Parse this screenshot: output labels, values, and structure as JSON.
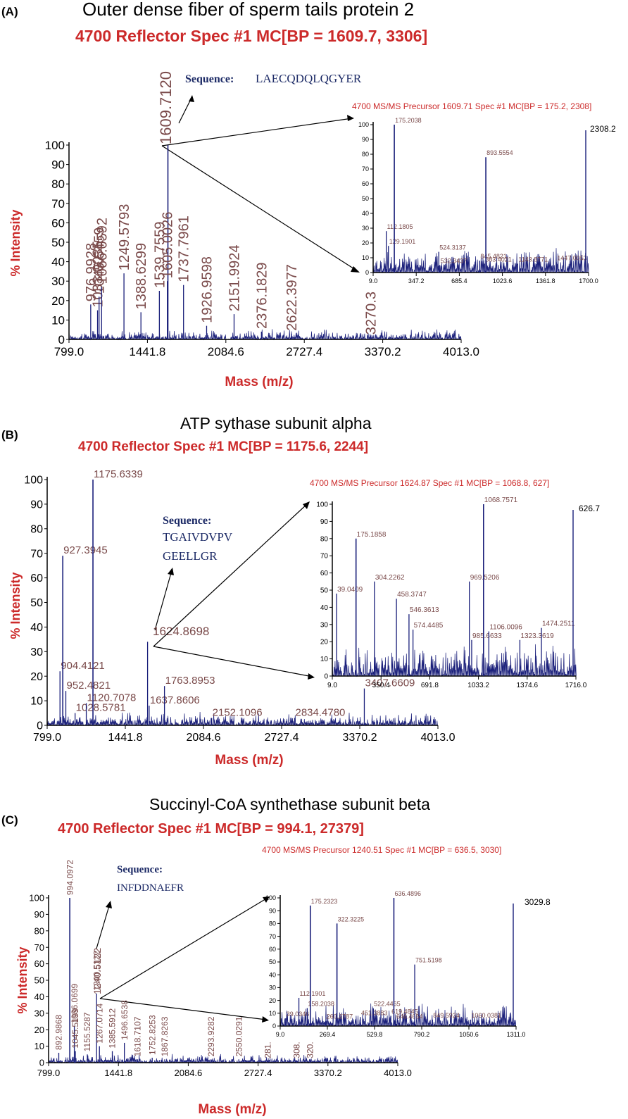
{
  "panels": [
    {
      "letter": "(A)",
      "protein": "Outer dense fiber of sperm tails protein 2",
      "spec_title": "4700 Reflector Spec #1 MC[BP = 1609.7, 3306]",
      "sequence_label": "Sequence:",
      "sequence_lines": [
        "LAECQDQLQGYER"
      ],
      "precursor_peak": "1609.7120"
    },
    {
      "letter": "(B)",
      "protein": "ATP sythase subunit alpha",
      "spec_title": "4700 Reflector Spec #1 MC[BP = 1175.6, 2244]",
      "sequence_label": "Sequence:",
      "sequence_lines": [
        "TGAIVDVPV",
        "GEELLGR"
      ],
      "precursor_peak": "1624.8698"
    },
    {
      "letter": "(C)",
      "protein": "Succinyl-CoA synthethase subunit beta",
      "spec_title": "4700 Reflector Spec #1 MC[BP = 994.1, 27379]",
      "sequence_label": "Sequence:",
      "sequence_lines": [
        "INFDDNAEFR"
      ],
      "precursor_peak": "1240.5122"
    }
  ],
  "chart_data": [
    {
      "type": "bar",
      "panel": "A-main",
      "title": "4700 Reflector Spec #1 MC[BP = 1609.7, 3306]",
      "xlabel": "Mass (m/z)",
      "ylabel": "% Intensity",
      "xlim": [
        799.0,
        4013.0
      ],
      "ylim": [
        0,
        100
      ],
      "xticks": [
        "799.0",
        "1441.8",
        "2084.6",
        "2727.4",
        "3370.2",
        "4013.0"
      ],
      "yticks": [
        "0",
        "10",
        "20",
        "30",
        "40",
        "50",
        "60",
        "70",
        "80",
        "90",
        "100"
      ],
      "peaks": [
        {
          "mz": 976.9928,
          "i": 18,
          "label": "976.9928"
        },
        {
          "mz": 1033.0035,
          "i": 15,
          "label": "1033.0035"
        },
        {
          "mz": 1045.5459,
          "i": 22,
          "label": "1045.5459"
        },
        {
          "mz": 1066.0592,
          "i": 27,
          "label": "1066.0592"
        },
        {
          "mz": 1249.5793,
          "i": 34,
          "label": "1249.5793"
        },
        {
          "mz": 1388.6299,
          "i": 14,
          "label": "1388.6299"
        },
        {
          "mz": 1539.7559,
          "i": 25,
          "label": "1539.7559"
        },
        {
          "mz": 1609.712,
          "i": 100,
          "label": "1609.7120"
        },
        {
          "mz": 1605.0026,
          "i": 30,
          "label": "1605.0026"
        },
        {
          "mz": 1737.7961,
          "i": 28,
          "label": "1737.7961"
        },
        {
          "mz": 1926.9598,
          "i": 7,
          "label": "1926.9598"
        },
        {
          "mz": 2151.9924,
          "i": 13,
          "label": "2151.9924"
        },
        {
          "mz": 2376.1829,
          "i": 4,
          "label": "2376.1829"
        },
        {
          "mz": 2622.3977,
          "i": 3,
          "label": "2622.3977"
        },
        {
          "mz": 3270.3,
          "i": 1,
          "label": "3270.3"
        }
      ]
    },
    {
      "type": "bar",
      "panel": "A-inset",
      "title": "4700 MS/MS Precursor 1609.71 Spec #1 MC[BP = 175.2, 2308]",
      "ylim": [
        0,
        100
      ],
      "xlim": [
        9.0,
        1700.0
      ],
      "xticks": [
        "9.0",
        "347.2",
        "685.4",
        "1023.6",
        "1361.8",
        "1700.0"
      ],
      "yticks": [
        "0",
        "10",
        "20",
        "30",
        "40",
        "50",
        "60",
        "70",
        "80",
        "90",
        "100"
      ],
      "max_label": "2308.2",
      "peaks": [
        {
          "mz": 112.1805,
          "i": 28,
          "label": "112.1805"
        },
        {
          "mz": 129.1901,
          "i": 18,
          "label": "129.1901"
        },
        {
          "mz": 175.2038,
          "i": 100,
          "label": "175.2038"
        },
        {
          "mz": 524.3137,
          "i": 14,
          "label": "524.3137"
        },
        {
          "mz": 532.3437,
          "i": 5,
          "label": "532.3437"
        },
        {
          "mz": 845.4821,
          "i": 8,
          "label": "845.4821"
        },
        {
          "mz": 883.4021,
          "i": 6,
          "label": "883.4021"
        },
        {
          "mz": 893.5554,
          "i": 78,
          "label": "893.5554"
        },
        {
          "mz": 1143.8771,
          "i": 6,
          "label": "1143.8771"
        },
        {
          "mz": 1447.0053,
          "i": 7,
          "label": "1447.0053"
        }
      ]
    },
    {
      "type": "bar",
      "panel": "B-main",
      "title": "4700 Reflector Spec #1 MC[BP = 1175.6, 2244]",
      "xlabel": "Mass (m/z)",
      "ylabel": "% Intensity",
      "xlim": [
        799.0,
        4013.0
      ],
      "ylim": [
        0,
        100
      ],
      "xticks": [
        "799.0",
        "1441.8",
        "2084.6",
        "2727.4",
        "3370.2",
        "4013.0"
      ],
      "yticks": [
        "0",
        "10",
        "20",
        "30",
        "40",
        "50",
        "60",
        "70",
        "80",
        "90",
        "100"
      ],
      "peaks": [
        {
          "mz": 904.4121,
          "i": 22,
          "label": "904.4121"
        },
        {
          "mz": 927.3945,
          "i": 69,
          "label": "927.3945"
        },
        {
          "mz": 952.4821,
          "i": 14,
          "label": "952.4821"
        },
        {
          "mz": 1028.5781,
          "i": 5,
          "label": "1028.5781"
        },
        {
          "mz": 1120.7078,
          "i": 9,
          "label": "1120.7078"
        },
        {
          "mz": 1175.6339,
          "i": 100,
          "label": "1175.6339"
        },
        {
          "mz": 1624.8698,
          "i": 34,
          "label": "1624.8698"
        },
        {
          "mz": 1637.8606,
          "i": 8,
          "label": "1637.8606"
        },
        {
          "mz": 1763.8953,
          "i": 16,
          "label": "1763.8953"
        },
        {
          "mz": 2152.1096,
          "i": 3,
          "label": "2152.1096"
        },
        {
          "mz": 2834.478,
          "i": 3,
          "label": "2834.4780"
        },
        {
          "mz": 3407.6609,
          "i": 15,
          "label": "3407.6609"
        }
      ]
    },
    {
      "type": "bar",
      "panel": "B-inset",
      "title": "4700 MS/MS Precursor 1624.87 Spec #1 MC[BP = 1068.8, 627]",
      "ylim": [
        0,
        100
      ],
      "xlim": [
        9.0,
        1716.0
      ],
      "xticks": [
        "9.0",
        "350.4",
        "691.8",
        "1033.2",
        "1374.6",
        "1716.0"
      ],
      "yticks": [
        "0",
        "10",
        "20",
        "30",
        "40",
        "50",
        "60",
        "70",
        "80",
        "90",
        "100"
      ],
      "max_label": "626.7",
      "peaks": [
        {
          "mz": 39.0409,
          "i": 48,
          "label": "39.0409"
        },
        {
          "mz": 175.1858,
          "i": 80,
          "label": "175.1858"
        },
        {
          "mz": 304.2262,
          "i": 55,
          "label": "304.2262"
        },
        {
          "mz": 458.3747,
          "i": 45,
          "label": "458.3747"
        },
        {
          "mz": 546.3613,
          "i": 36,
          "label": "546.3613"
        },
        {
          "mz": 574.4485,
          "i": 27,
          "label": "574.4485"
        },
        {
          "mz": 969.5206,
          "i": 55,
          "label": "969.5206"
        },
        {
          "mz": 985.6633,
          "i": 21,
          "label": "985.6633"
        },
        {
          "mz": 1068.7571,
          "i": 100,
          "label": "1068.7571"
        },
        {
          "mz": 1106.0096,
          "i": 26,
          "label": "1106.0096"
        },
        {
          "mz": 1323.3619,
          "i": 21,
          "label": "1323.3619"
        },
        {
          "mz": 1474.2511,
          "i": 28,
          "label": "1474.2511"
        }
      ]
    },
    {
      "type": "bar",
      "panel": "C-main",
      "title": "4700 Reflector Spec #1 MC[BP = 994.1, 27379]",
      "xlabel": "Mass (m/z)",
      "ylabel": "% Intensity",
      "xlim": [
        799.0,
        4013.0
      ],
      "ylim": [
        0,
        100
      ],
      "xticks": [
        "799.0",
        "1441.8",
        "2084.6",
        "2727.4",
        "3370.2",
        "4013.0"
      ],
      "yticks": [
        "0",
        "10",
        "20",
        "30",
        "40",
        "50",
        "60",
        "70",
        "80",
        "90",
        "100"
      ],
      "peaks": [
        {
          "mz": 892.9868,
          "i": 6,
          "label": "892.9868"
        },
        {
          "mz": 994.0972,
          "i": 100,
          "label": "994.0972"
        },
        {
          "mz": 1036.0699,
          "i": 22,
          "label": "1036.0699"
        },
        {
          "mz": 1045.5199,
          "i": 7,
          "label": "1045.5199"
        },
        {
          "mz": 1155.5287,
          "i": 5,
          "label": "1155.5287"
        },
        {
          "mz": 1240.5122,
          "i": 42,
          "label": "1240.5122"
        },
        {
          "mz": 1267.0714,
          "i": 10,
          "label": "1267.0714"
        },
        {
          "mz": 1385.5912,
          "i": 7,
          "label": "1385.5912"
        },
        {
          "mz": 1496.6538,
          "i": 12,
          "label": "1496.6538"
        },
        {
          "mz": 1618.7107,
          "i": 2,
          "label": "1618.7107"
        },
        {
          "mz": 1752.8253,
          "i": 3,
          "label": "1752.8253"
        },
        {
          "mz": 1867.8263,
          "i": 2,
          "label": "1867.8263"
        },
        {
          "mz": 2293.9282,
          "i": 2,
          "label": "2293.9282"
        },
        {
          "mz": 2550.0291,
          "i": 2,
          "label": "2550.0291"
        },
        {
          "mz": 2817.0,
          "i": 1,
          "label": "281."
        },
        {
          "mz": 3083.0,
          "i": 1,
          "label": "308."
        },
        {
          "mz": 3206.0,
          "i": 1,
          "label": "320."
        }
      ]
    },
    {
      "type": "bar",
      "panel": "C-inset",
      "title": "4700 MS/MS Precursor 1240.51 Spec #1 MC[BP = 636.5, 3030]",
      "ylim": [
        0,
        100
      ],
      "xlim": [
        9.0,
        1311.0
      ],
      "xticks": [
        "9.0",
        "269.4",
        "529.8",
        "790.2",
        "1050.6",
        "1311.0"
      ],
      "yticks": [
        "0",
        "10",
        "20",
        "30",
        "40",
        "50",
        "60",
        "70",
        "80",
        "90",
        "100"
      ],
      "max_label": "3029.8",
      "peaks": [
        {
          "mz": 39.0346,
          "i": 6,
          "label": "39.0346"
        },
        {
          "mz": 112.1901,
          "i": 22,
          "label": "112.1901"
        },
        {
          "mz": 158.2038,
          "i": 14,
          "label": "158.2038"
        },
        {
          "mz": 175.2323,
          "i": 94,
          "label": "175.2323"
        },
        {
          "mz": 260.2787,
          "i": 4,
          "label": "260.2787"
        },
        {
          "mz": 322.3225,
          "i": 80,
          "label": "322.3225"
        },
        {
          "mz": 451.3883,
          "i": 7,
          "label": "451.3883"
        },
        {
          "mz": 522.4465,
          "i": 14,
          "label": "522.4465"
        },
        {
          "mz": 619.4845,
          "i": 8,
          "label": "619.4845"
        },
        {
          "mz": 636.4896,
          "i": 100,
          "label": "636.4896"
        },
        {
          "mz": 646.4654,
          "i": 4,
          "label": "646.4654"
        },
        {
          "mz": 751.5198,
          "i": 48,
          "label": "751.5198"
        },
        {
          "mz": 849.5924,
          "i": 5,
          "label": "849.5924"
        },
        {
          "mz": 1060.0381,
          "i": 5,
          "label": "1060.0381"
        }
      ]
    }
  ],
  "colors": {
    "spectrum": "#1a1f7a",
    "title_red": "#cc2a2a",
    "peak_label": "#7a4a4a",
    "axis": "#000000",
    "sequence": "#1c2a66"
  }
}
